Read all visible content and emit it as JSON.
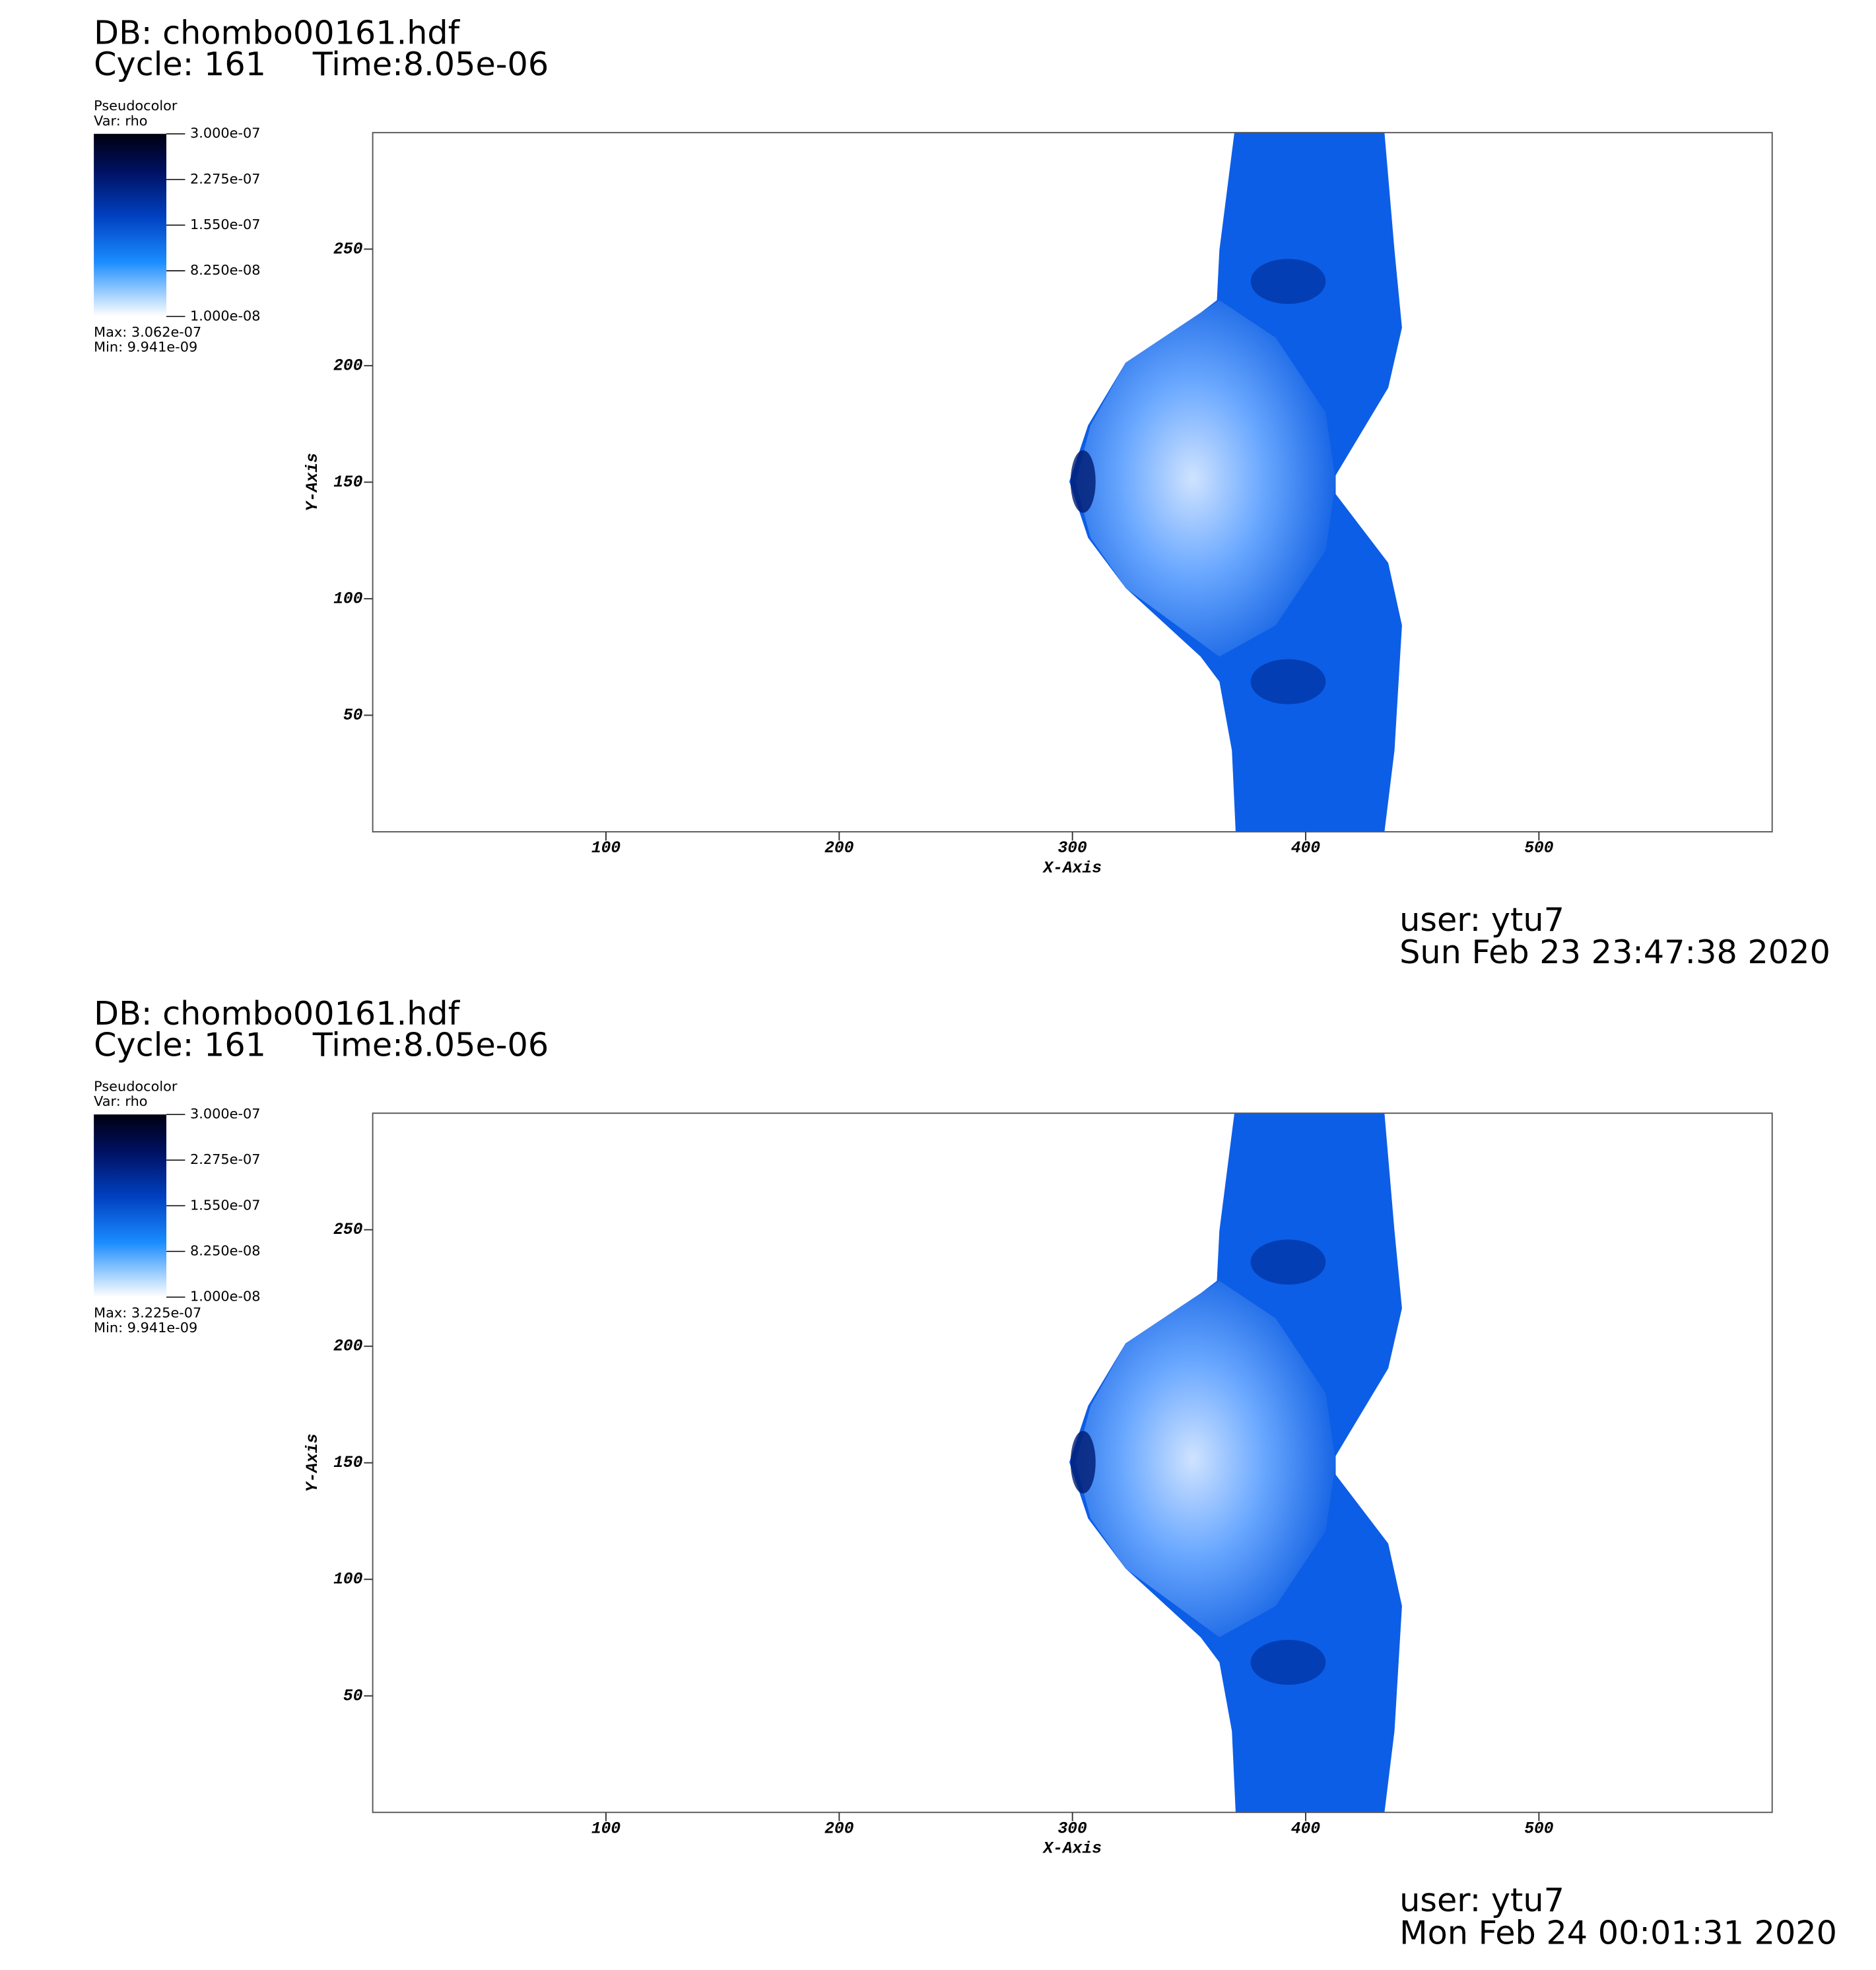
{
  "chart_data": [
    {
      "type": "pseudocolor",
      "db": "DB: chombo00161.hdf",
      "cycle": "Cycle: 161",
      "time": "Time:8.05e-06",
      "legend_title": "Pseudocolor",
      "variable": "Var: rho",
      "colorbar_lim": [
        1e-08,
        3e-07
      ],
      "colorbar_ticks": [
        {
          "value": 3e-07,
          "label": "3.000e-07"
        },
        {
          "value": 2.275e-07,
          "label": "2.275e-07"
        },
        {
          "value": 1.55e-07,
          "label": "1.550e-07"
        },
        {
          "value": 8.25e-08,
          "label": "8.250e-08"
        },
        {
          "value": 1e-08,
          "label": "1.000e-08"
        }
      ],
      "max": "Max:  3.062e-07",
      "min": "Min:  9.941e-09",
      "x_label": "X-Axis",
      "y_label": "Y-Axis",
      "xlim": [
        0,
        600
      ],
      "ylim": [
        0,
        300
      ],
      "xticks": [
        100,
        200,
        300,
        400,
        500
      ],
      "yticks": [
        50,
        100,
        150,
        200,
        250
      ],
      "user": "user: ytu7",
      "date": "Sun Feb 23 23:47:38 2020"
    },
    {
      "type": "pseudocolor",
      "db": "DB: chombo00161.hdf",
      "cycle": "Cycle: 161",
      "time": "Time:8.05e-06",
      "legend_title": "Pseudocolor",
      "variable": "Var: rho",
      "colorbar_lim": [
        1e-08,
        3e-07
      ],
      "colorbar_ticks": [
        {
          "value": 3e-07,
          "label": "3.000e-07"
        },
        {
          "value": 2.275e-07,
          "label": "2.275e-07"
        },
        {
          "value": 1.55e-07,
          "label": "1.550e-07"
        },
        {
          "value": 8.25e-08,
          "label": "8.250e-08"
        },
        {
          "value": 1e-08,
          "label": "1.000e-08"
        }
      ],
      "max": "Max:  3.225e-07",
      "min": "Min:  9.941e-09",
      "x_label": "X-Axis",
      "y_label": "Y-Axis",
      "xlim": [
        0,
        600
      ],
      "ylim": [
        0,
        300
      ],
      "xticks": [
        100,
        200,
        300,
        400,
        500
      ],
      "yticks": [
        50,
        100,
        150,
        200,
        250
      ],
      "user": "user: ytu7",
      "date": "Mon Feb 24 00:01:31 2020"
    }
  ]
}
